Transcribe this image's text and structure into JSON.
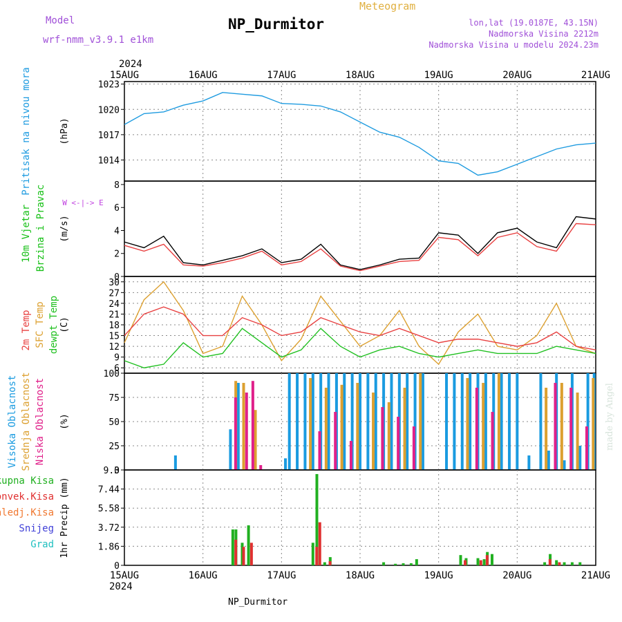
{
  "header": {
    "title": "NP_Durmitor",
    "subtitle": "Meteogram",
    "model_label": "Model",
    "model_name": "wrf-nmm_v3.9.1 e1km",
    "lonlat": "lon,lat (19.0187E, 43.15N)",
    "altitude": "Nadmorska Visina 2212m",
    "model_altitude": "Nadmorska Visina u modelu 2024.23m",
    "footer": "NP_Durmitor",
    "credit": "made by Angel",
    "year": "2024"
  },
  "colors": {
    "pressure": "#1e9be0",
    "wind_label": "#16c016",
    "compass": "#c040e0",
    "temp_2m": "#e84040",
    "temp_sfc": "#dca030",
    "dewpoint": "#20c020",
    "cloud_high": "#1a9be0",
    "cloud_mid": "#dca030",
    "cloud_low": "#e0208a",
    "precip_total": "#20b020",
    "precip_conv": "#e03030",
    "precip_frozen": "#f07830",
    "precip_snow": "#4040d8",
    "precip_graupel": "#20c0c0",
    "title_purple": "#a050d8",
    "meteogram_orange": "#e0b040"
  },
  "chart_data": [
    {
      "type": "line",
      "name": "pressure",
      "x_ticks": [
        "15AUG",
        "16AUG",
        "17AUG",
        "18AUG",
        "19AUG",
        "20AUG",
        "21AUG"
      ],
      "ylabel": "(hPa)",
      "side_label": "Pritisak na nivou mora",
      "ylim": [
        1011.5,
        1023.3
      ],
      "y_ticks": [
        "1014",
        "1017",
        "1020",
        "1023"
      ],
      "grid": true,
      "series": [
        {
          "color": "#1e9be0",
          "x": [
            0,
            0.25,
            0.5,
            0.75,
            1,
            1.25,
            1.5,
            1.75,
            2,
            2.25,
            2.5,
            2.75,
            3,
            3.25,
            3.5,
            3.75,
            4,
            4.25,
            4.5,
            4.75,
            5,
            5.25,
            5.5,
            5.75,
            6
          ],
          "values": [
            1018.2,
            1019.5,
            1019.7,
            1020.5,
            1021.0,
            1022.0,
            1021.8,
            1021.6,
            1020.7,
            1020.6,
            1020.4,
            1019.7,
            1018.5,
            1017.3,
            1016.7,
            1015.5,
            1013.9,
            1013.6,
            1012.2,
            1012.6,
            1013.5,
            1014.4,
            1015.3,
            1015.8,
            1016.0
          ]
        }
      ]
    },
    {
      "type": "line",
      "name": "wind",
      "ylabel": "(m/s)",
      "side_label_1": "10m Vjetar",
      "side_label_2": "Brzina i Pravac",
      "compass_text": "W <-|-> E",
      "ylim": [
        0,
        8.3
      ],
      "y_ticks": [
        "0",
        "2",
        "4",
        "6",
        "8"
      ],
      "series": [
        {
          "color": "#000000",
          "x": [
            0,
            0.25,
            0.5,
            0.75,
            1,
            1.25,
            1.5,
            1.75,
            2,
            2.25,
            2.5,
            2.75,
            3,
            3.25,
            3.5,
            3.75,
            4,
            4.25,
            4.5,
            4.75,
            5,
            5.25,
            5.5,
            5.75,
            6
          ],
          "values": [
            3.0,
            2.5,
            3.5,
            1.2,
            1.0,
            1.4,
            1.8,
            2.4,
            1.2,
            1.5,
            2.8,
            1.0,
            0.6,
            1.0,
            1.5,
            1.6,
            3.8,
            3.6,
            2.0,
            3.8,
            4.2,
            3.0,
            2.5,
            5.2,
            5.0
          ]
        },
        {
          "color": "#e84040",
          "x": [
            0,
            0.25,
            0.5,
            0.75,
            1,
            1.25,
            1.5,
            1.75,
            2,
            2.25,
            2.5,
            2.75,
            3,
            3.25,
            3.5,
            3.75,
            4,
            4.25,
            4.5,
            4.75,
            5,
            5.25,
            5.5,
            5.75,
            6
          ],
          "values": [
            2.7,
            2.2,
            2.8,
            1.0,
            0.9,
            1.2,
            1.6,
            2.2,
            1.0,
            1.3,
            2.4,
            0.9,
            0.5,
            0.9,
            1.3,
            1.4,
            3.4,
            3.2,
            1.8,
            3.4,
            3.8,
            2.6,
            2.2,
            4.6,
            4.5
          ]
        }
      ]
    },
    {
      "type": "line",
      "name": "temperature",
      "ylabel": "(C)",
      "side_label_1": "2m Temp",
      "side_label_2": "SFC Temp",
      "side_label_3": "dewpt Temp",
      "ylim": [
        4.5,
        31.5
      ],
      "y_ticks": [
        "6",
        "9",
        "12",
        "15",
        "18",
        "21",
        "24",
        "27",
        "30"
      ],
      "grid": true,
      "series": [
        {
          "color": "#dca030",
          "x": [
            0,
            0.25,
            0.5,
            0.75,
            1,
            1.25,
            1.5,
            1.75,
            2,
            2.25,
            2.5,
            2.75,
            3,
            3.25,
            3.5,
            3.75,
            4,
            4.25,
            4.5,
            4.75,
            5,
            5.25,
            5.5,
            5.75,
            6
          ],
          "values": [
            13,
            25,
            30,
            22,
            10,
            12,
            26,
            18,
            8,
            14,
            26,
            19,
            12,
            15,
            22,
            12,
            7,
            16,
            21,
            12,
            11,
            15,
            24,
            12,
            10
          ]
        },
        {
          "color": "#e84040",
          "x": [
            0,
            0.25,
            0.5,
            0.75,
            1,
            1.25,
            1.5,
            1.75,
            2,
            2.25,
            2.5,
            2.75,
            3,
            3.25,
            3.5,
            3.75,
            4,
            4.25,
            4.5,
            4.75,
            5,
            5.25,
            5.5,
            5.75,
            6
          ],
          "values": [
            15,
            21,
            23,
            21,
            15,
            15,
            20,
            18,
            15,
            16,
            20,
            18,
            16,
            15,
            17,
            15,
            13,
            14,
            14,
            13,
            12,
            13,
            16,
            12,
            11
          ]
        },
        {
          "color": "#20c020",
          "x": [
            0,
            0.25,
            0.5,
            0.75,
            1,
            1.25,
            1.5,
            1.75,
            2,
            2.25,
            2.5,
            2.75,
            3,
            3.25,
            3.5,
            3.75,
            4,
            4.25,
            4.5,
            4.75,
            5,
            5.25,
            5.5,
            5.75,
            6
          ],
          "values": [
            8,
            6,
            7,
            13,
            9,
            10,
            17,
            13,
            9,
            11,
            17,
            12,
            9,
            11,
            12,
            10,
            9,
            10,
            11,
            10,
            10,
            10,
            12,
            11,
            10
          ]
        }
      ]
    },
    {
      "type": "bar",
      "name": "cloud",
      "ylabel": "(%)",
      "side_label_1": "Visoka Oblacnost",
      "side_label_2": "Srednja Oblacnost",
      "side_label_3": "Niska Oblacnost",
      "ylim": [
        0,
        100
      ],
      "y_ticks": [
        "0",
        "25",
        "50",
        "75",
        "100"
      ],
      "grid": true,
      "series": [
        {
          "name": "Visoka Oblacnost",
          "color": "#1a9be0",
          "x": [
            0.65,
            1.35,
            1.45,
            2.05,
            2.1,
            2.2,
            2.3,
            2.4,
            2.5,
            2.6,
            2.7,
            2.8,
            2.9,
            3.0,
            3.1,
            3.2,
            3.3,
            3.4,
            3.5,
            3.6,
            3.7,
            3.8,
            4.1,
            4.2,
            4.3,
            4.4,
            4.5,
            4.6,
            4.7,
            4.8,
            4.9,
            5.0,
            5.15,
            5.3,
            5.4,
            5.5,
            5.6,
            5.7,
            5.8,
            5.9,
            5.98
          ],
          "values": [
            15,
            42,
            90,
            12,
            100,
            100,
            100,
            100,
            100,
            100,
            100,
            100,
            100,
            100,
            100,
            100,
            100,
            100,
            100,
            100,
            100,
            100,
            100,
            100,
            100,
            100,
            100,
            100,
            100,
            100,
            100,
            100,
            15,
            100,
            20,
            100,
            10,
            100,
            25,
            100,
            100
          ]
        },
        {
          "name": "Srednja Oblacnost",
          "color": "#dca030",
          "x": [
            1.4,
            1.5,
            1.65,
            2.35,
            2.55,
            2.75,
            2.95,
            3.15,
            3.35,
            3.55,
            3.75,
            4.35,
            4.55,
            4.75,
            5.35,
            5.55,
            5.75,
            5.95
          ],
          "values": [
            92,
            90,
            62,
            95,
            85,
            88,
            90,
            80,
            70,
            85,
            100,
            95,
            90,
            100,
            85,
            90,
            80,
            95
          ]
        },
        {
          "name": "Niska Oblacnost",
          "color": "#e0208a",
          "x": [
            1.38,
            1.52,
            1.6,
            1.7,
            2.45,
            2.65,
            2.85,
            3.25,
            3.45,
            3.65,
            4.45,
            4.65,
            5.45,
            5.65,
            5.85
          ],
          "values": [
            75,
            80,
            92,
            5,
            40,
            60,
            30,
            65,
            55,
            45,
            85,
            60,
            90,
            85,
            45
          ]
        }
      ]
    },
    {
      "type": "bar",
      "name": "precipitation",
      "ylabel": "1hr Precip (mm)",
      "ylim": [
        0,
        9.3
      ],
      "y_ticks": [
        "0",
        "1.86",
        "3.72",
        "5.58",
        "7.44",
        "9.3"
      ],
      "grid": true,
      "legend": [
        "Ukupna Kisa",
        "Konvek.Kisa",
        "Zaledj.Kisa",
        "Snijeg",
        "Grad"
      ],
      "series": [
        {
          "name": "Ukupna Kisa",
          "color": "#20b020",
          "x": [
            1.38,
            1.42,
            1.5,
            1.58,
            2.4,
            2.45,
            2.55,
            2.62,
            3.3,
            3.45,
            3.55,
            3.65,
            3.72,
            4.28,
            4.35,
            4.5,
            4.58,
            4.62,
            4.68,
            5.35,
            5.42,
            5.5,
            5.6,
            5.7,
            5.8
          ],
          "values": [
            3.5,
            3.5,
            2.2,
            3.9,
            2.2,
            8.9,
            0.3,
            0.8,
            0.3,
            0.15,
            0.2,
            0.2,
            0.6,
            1.0,
            0.7,
            0.7,
            0.6,
            1.3,
            1.1,
            0.3,
            1.1,
            0.5,
            0.3,
            0.3,
            0.3
          ]
        },
        {
          "name": "Konvek.Kisa",
          "color": "#e03030",
          "x": [
            1.4,
            1.5,
            1.6,
            2.43,
            2.47,
            2.6,
            4.32,
            4.52,
            4.6,
            5.4,
            5.52
          ],
          "values": [
            2.5,
            1.8,
            2.2,
            1.8,
            4.2,
            0.4,
            0.5,
            0.5,
            1.0,
            0.6,
            0.3
          ]
        }
      ],
      "x_ticks": [
        "15AUG",
        "16AUG",
        "17AUG",
        "18AUG",
        "19AUG",
        "20AUG",
        "21AUG"
      ]
    }
  ]
}
